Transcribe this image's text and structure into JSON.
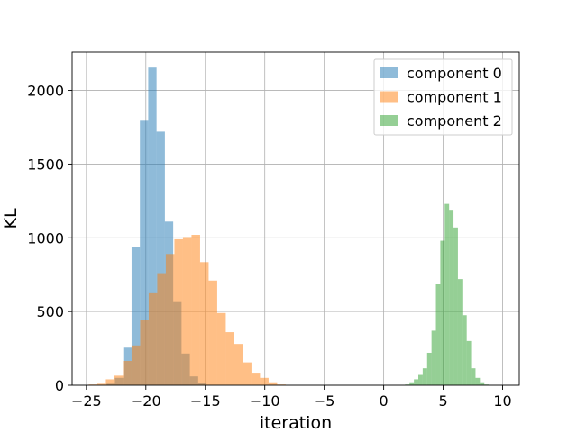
{
  "chart_data": {
    "type": "bar",
    "subtype": "histogram",
    "title": "",
    "xlabel": "iteration",
    "ylabel": "KL",
    "xlim": [
      -26.2,
      11.4
    ],
    "ylim": [
      0,
      2260
    ],
    "x_ticks": [
      -25,
      -20,
      -15,
      -10,
      -5,
      0,
      5,
      10
    ],
    "y_ticks": [
      0,
      500,
      1000,
      1500,
      2000
    ],
    "grid": true,
    "legend_position": "top-right",
    "bar_alpha": 0.5,
    "series": [
      {
        "name": "component 0",
        "color": "#1f77b4",
        "bin_width": 0.7,
        "bins": [
          [
            -23.3,
            -22.6,
            10
          ],
          [
            -22.6,
            -21.9,
            50
          ],
          [
            -21.9,
            -21.2,
            255
          ],
          [
            -21.2,
            -20.5,
            935
          ],
          [
            -20.5,
            -19.8,
            1800
          ],
          [
            -19.8,
            -19.1,
            2155
          ],
          [
            -19.1,
            -18.4,
            1720
          ],
          [
            -18.4,
            -17.7,
            1110
          ],
          [
            -17.7,
            -17.0,
            570
          ],
          [
            -17.0,
            -16.3,
            215
          ],
          [
            -16.3,
            -15.6,
            60
          ],
          [
            -15.6,
            -14.9,
            15
          ]
        ]
      },
      {
        "name": "component 1",
        "color": "#ff7f0e",
        "bin_width": 0.72,
        "bins": [
          [
            -24.8,
            -24.08,
            5
          ],
          [
            -24.08,
            -23.36,
            10
          ],
          [
            -23.36,
            -22.64,
            40
          ],
          [
            -22.64,
            -21.92,
            65
          ],
          [
            -21.92,
            -21.2,
            165
          ],
          [
            -21.2,
            -20.48,
            270
          ],
          [
            -20.48,
            -19.76,
            440
          ],
          [
            -19.76,
            -19.04,
            630
          ],
          [
            -19.04,
            -18.32,
            760
          ],
          [
            -18.32,
            -17.6,
            890
          ],
          [
            -17.6,
            -16.88,
            990
          ],
          [
            -16.88,
            -16.16,
            1005
          ],
          [
            -16.16,
            -15.44,
            1020
          ],
          [
            -15.44,
            -14.72,
            835
          ],
          [
            -14.72,
            -14.0,
            710
          ],
          [
            -14.0,
            -13.28,
            490
          ],
          [
            -13.28,
            -12.56,
            360
          ],
          [
            -12.56,
            -11.84,
            280
          ],
          [
            -11.84,
            -11.12,
            155
          ],
          [
            -11.12,
            -10.4,
            85
          ],
          [
            -10.4,
            -9.68,
            50
          ],
          [
            -9.68,
            -8.96,
            20
          ],
          [
            -8.96,
            -8.24,
            5
          ]
        ]
      },
      {
        "name": "component 2",
        "color": "#2ca02c",
        "bin_width": 0.37,
        "bins": [
          [
            1.8,
            2.17,
            5
          ],
          [
            2.17,
            2.54,
            20
          ],
          [
            2.54,
            2.91,
            40
          ],
          [
            2.91,
            3.28,
            70
          ],
          [
            3.28,
            3.65,
            115
          ],
          [
            3.65,
            4.02,
            220
          ],
          [
            4.02,
            4.39,
            370
          ],
          [
            4.39,
            4.76,
            690
          ],
          [
            4.76,
            5.13,
            980
          ],
          [
            5.13,
            5.5,
            1230
          ],
          [
            5.5,
            5.87,
            1190
          ],
          [
            5.87,
            6.24,
            1070
          ],
          [
            6.24,
            6.61,
            720
          ],
          [
            6.61,
            6.98,
            475
          ],
          [
            6.98,
            7.35,
            300
          ],
          [
            7.35,
            7.72,
            115
          ],
          [
            7.72,
            8.09,
            50
          ],
          [
            8.09,
            8.46,
            20
          ],
          [
            8.46,
            8.83,
            5
          ]
        ]
      }
    ]
  }
}
